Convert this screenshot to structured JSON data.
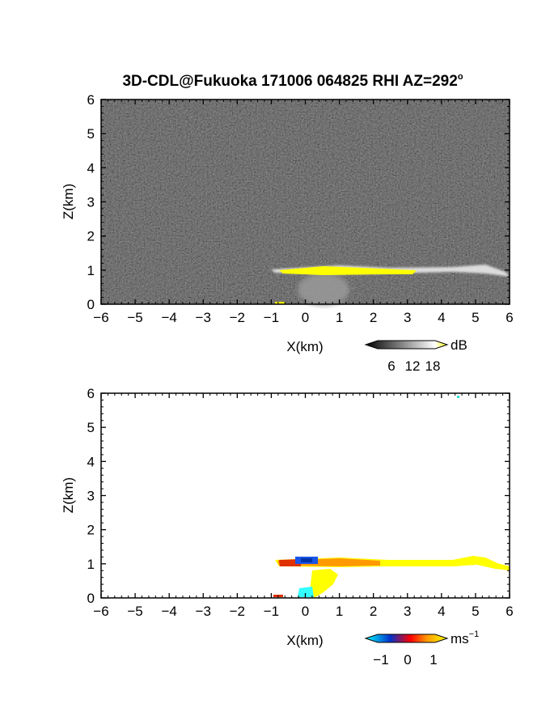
{
  "title": "3D-CDL@Fukuoka 171006 064825 RHI AZ=292",
  "title_sup": "o",
  "chart_data": [
    {
      "type": "heatmap",
      "panel": "snr",
      "xlabel": "X(km)",
      "ylabel": "Z(km)",
      "xlim": [
        -6,
        6
      ],
      "ylim": [
        0,
        6
      ],
      "xticks": [
        "−6",
        "−5",
        "−4",
        "−3",
        "−2",
        "−1",
        "0",
        "1",
        "2",
        "3",
        "4",
        "5",
        "6"
      ],
      "yticks": [
        "0",
        "1",
        "2",
        "3",
        "4",
        "5",
        "6"
      ],
      "background_color": "#2a2a2a",
      "colorbar": {
        "unit": "dB",
        "ticks": [
          "6",
          "12",
          "18"
        ],
        "range": [
          0,
          20
        ],
        "colors": [
          "#000000",
          "#ffffff",
          "#ffff00"
        ]
      },
      "features": [
        {
          "name": "layer",
          "x": [
            -1.0,
            6.0
          ],
          "z": [
            0.85,
            1.0
          ],
          "level": "white"
        },
        {
          "name": "core",
          "x": [
            -0.6,
            3.3
          ],
          "z": [
            0.85,
            1.0
          ],
          "level": "yellow"
        },
        {
          "name": "plume",
          "x": [
            -0.5,
            1.2
          ],
          "z": [
            0.0,
            0.8
          ],
          "level": "gray"
        }
      ]
    },
    {
      "type": "heatmap",
      "panel": "velocity",
      "xlabel": "X(km)",
      "ylabel": "Z(km)",
      "xlim": [
        -6,
        6
      ],
      "ylim": [
        0,
        6
      ],
      "xticks": [
        "−6",
        "−5",
        "−4",
        "−3",
        "−2",
        "−1",
        "0",
        "1",
        "2",
        "3",
        "4",
        "5",
        "6"
      ],
      "yticks": [
        "0",
        "1",
        "2",
        "3",
        "4",
        "5",
        "6"
      ],
      "colorbar": {
        "unit": "ms",
        "unit_sup": "−1",
        "ticks": [
          "−1",
          "0",
          "1"
        ],
        "range": [
          -1.5,
          1.5
        ],
        "colors": [
          "#00ffff",
          "#0033cc",
          "#ff0000",
          "#ff9900",
          "#ffff00"
        ]
      },
      "features": [
        {
          "name": "layer",
          "x": [
            -1.0,
            6.0
          ],
          "z": [
            0.85,
            1.05
          ],
          "value": "positive"
        },
        {
          "name": "negative-core",
          "x": [
            -0.4,
            0.4
          ],
          "z": [
            0.9,
            1.1
          ],
          "value": "negative"
        },
        {
          "name": "plume",
          "x": [
            0.0,
            1.4
          ],
          "z": [
            0.0,
            0.7
          ],
          "value": "positive"
        },
        {
          "name": "surface-negative",
          "x": [
            -0.2,
            0.3
          ],
          "z": [
            0.0,
            0.3
          ],
          "value": "negative"
        }
      ]
    }
  ]
}
